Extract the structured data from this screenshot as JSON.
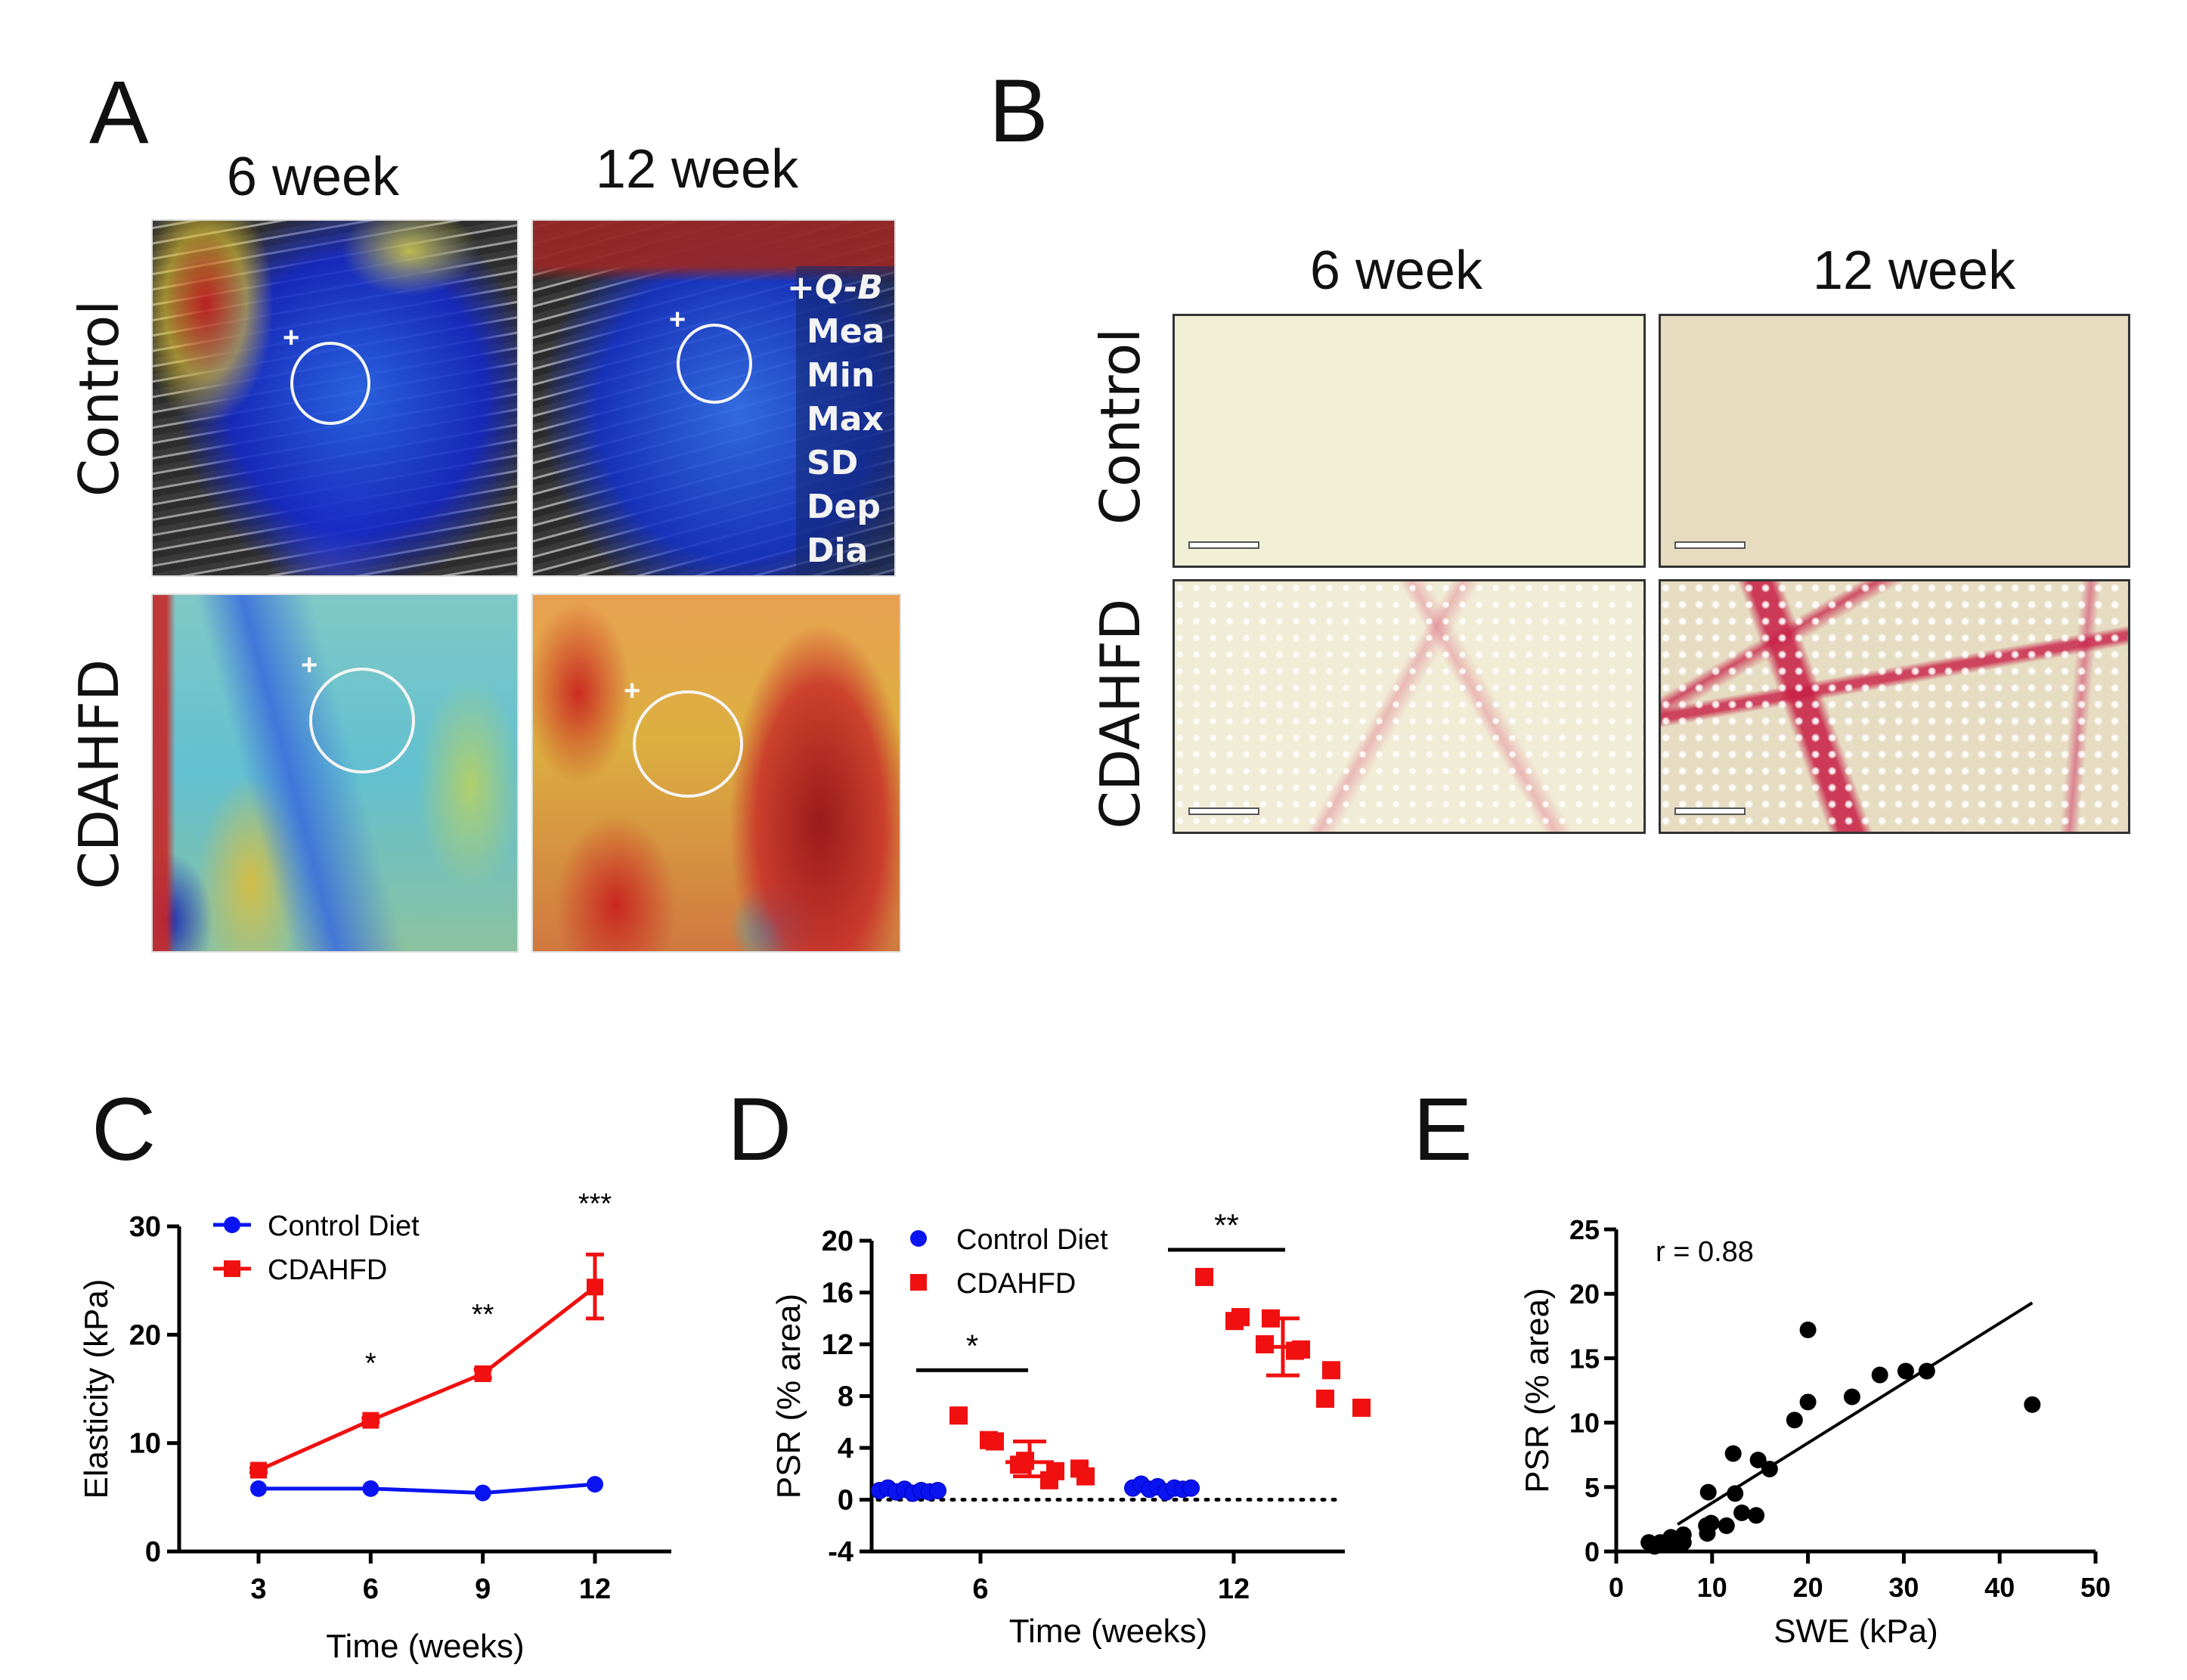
{
  "figure": {
    "panel_labels": {
      "a": "A",
      "b": "B",
      "c": "C",
      "d": "D",
      "e": "E"
    },
    "panel_a": {
      "columns": [
        "6 week",
        "12 week"
      ],
      "rows": [
        "Control",
        "CDAHFD"
      ],
      "qbox_lines": [
        "+Q-B",
        "Mea",
        "Min",
        "Max",
        "SD",
        "Dep",
        "Dia"
      ],
      "images": [
        {
          "row": "Control",
          "col": "6 week",
          "description": "shear-wave elastography map, mostly blue (soft)"
        },
        {
          "row": "Control",
          "col": "12 week",
          "description": "shear-wave elastography map, mostly blue (soft)"
        },
        {
          "row": "CDAHFD",
          "col": "6 week",
          "description": "shear-wave elastography map, cyan/yellow (intermediate)"
        },
        {
          "row": "CDAHFD",
          "col": "12 week",
          "description": "shear-wave elastography map, red/yellow (stiff)"
        }
      ]
    },
    "panel_b": {
      "columns": [
        "6 week",
        "12 week"
      ],
      "rows": [
        "Control",
        "CDAHFD"
      ],
      "images": [
        {
          "row": "Control",
          "col": "6 week",
          "description": "picrosirius red histology, minimal staining"
        },
        {
          "row": "Control",
          "col": "12 week",
          "description": "picrosirius red histology, minimal staining"
        },
        {
          "row": "CDAHFD",
          "col": "6 week",
          "description": "picrosirius red histology, faint fibrous strands, steatosis"
        },
        {
          "row": "CDAHFD",
          "col": "12 week",
          "description": "picrosirius red histology, bridging fibrosis, steatosis"
        }
      ]
    }
  },
  "chart_data": [
    {
      "id": "C",
      "type": "line",
      "title": "",
      "xlabel": "Time (weeks)",
      "ylabel": "Elasticity (kPa)",
      "x": [
        3,
        6,
        9,
        12
      ],
      "xticks": [
        "3",
        "6",
        "9",
        "12"
      ],
      "yticks": [
        "0",
        "10",
        "20",
        "30"
      ],
      "ylim": [
        0,
        30
      ],
      "xlim": [
        1,
        14.5
      ],
      "legend_position": "top-left",
      "series": [
        {
          "name": "Control Diet",
          "color": "#0a14f0",
          "marker": "circle",
          "values": [
            5.8,
            5.8,
            5.4,
            6.2
          ]
        },
        {
          "name": "CDAHFD",
          "color": "#f01010",
          "marker": "square",
          "values": [
            7.5,
            12.1,
            16.4,
            24.4
          ],
          "error_bars": [
            [
              7.3,
              7.7
            ],
            [
              11.9,
              12.3
            ],
            [
              16.0,
              16.8
            ],
            [
              21.5,
              27.4
            ]
          ]
        }
      ],
      "annotations": [
        {
          "x": 6,
          "text": "*"
        },
        {
          "x": 9,
          "text": "**"
        },
        {
          "x": 12,
          "text": "***"
        }
      ]
    },
    {
      "id": "D",
      "type": "scatter",
      "title": "",
      "xlabel": "Time (weeks)",
      "ylabel": "PSR (% area)",
      "categories": [
        "6",
        "12"
      ],
      "yticks": [
        "-4",
        "0",
        "4",
        "8",
        "12",
        "16",
        "20"
      ],
      "ylim": [
        -4,
        20
      ],
      "reference_line": 0,
      "legend_position": "top-left",
      "series": [
        {
          "name": "Control Diet",
          "color": "#0a14f0",
          "marker": "circle",
          "groups": [
            {
              "category": "6",
              "values": [
                0.7,
                0.9,
                0.6,
                0.8,
                0.5,
                0.7,
                0.6,
                0.7
              ]
            },
            {
              "category": "12",
              "values": [
                0.9,
                1.2,
                0.8,
                1.0,
                0.6,
                0.9,
                0.8,
                0.9
              ]
            }
          ]
        },
        {
          "name": "CDAHFD",
          "color": "#f01010",
          "marker": "square",
          "groups": [
            {
              "category": "6",
              "values": [
                6.5,
                4.5,
                4.6,
                3.0,
                2.7,
                2.2,
                1.5,
                1.8,
                2.4
              ],
              "mean": 2.9,
              "error": [
                1.8,
                4.5
              ]
            },
            {
              "category": "12",
              "values": [
                17.2,
                14.1,
                13.8,
                14.0,
                12.0,
                11.6,
                11.5,
                10.0,
                7.8,
                7.1
              ],
              "mean": 11.8,
              "error": [
                9.6,
                14.0
              ]
            }
          ]
        }
      ],
      "annotations": [
        {
          "category": "6",
          "text": "*"
        },
        {
          "category": "12",
          "text": "**"
        }
      ]
    },
    {
      "id": "E",
      "type": "scatter",
      "title": "",
      "xlabel": "SWE (kPa)",
      "ylabel": "PSR (% area)",
      "xticks": [
        "0",
        "10",
        "20",
        "30",
        "40",
        "50"
      ],
      "yticks": [
        "0",
        "5",
        "10",
        "15",
        "20",
        "25"
      ],
      "xlim": [
        0,
        50
      ],
      "ylim": [
        0,
        25
      ],
      "annotation": "r = 0.88",
      "points": [
        [
          3.4,
          0.7
        ],
        [
          4.0,
          0.4
        ],
        [
          4.6,
          0.7
        ],
        [
          5.1,
          0.5
        ],
        [
          5.7,
          1.1
        ],
        [
          6.3,
          0.6
        ],
        [
          7.0,
          1.3
        ],
        [
          7.0,
          0.7
        ],
        [
          9.4,
          2.0
        ],
        [
          9.5,
          1.4
        ],
        [
          9.9,
          2.2
        ],
        [
          9.6,
          4.6
        ],
        [
          11.5,
          2.0
        ],
        [
          12.2,
          7.6
        ],
        [
          12.4,
          4.5
        ],
        [
          13.1,
          3.0
        ],
        [
          14.6,
          2.8
        ],
        [
          14.8,
          7.1
        ],
        [
          16.0,
          6.4
        ],
        [
          18.6,
          10.2
        ],
        [
          20.0,
          11.6
        ],
        [
          20.0,
          17.2
        ],
        [
          24.6,
          12.0
        ],
        [
          27.5,
          13.7
        ],
        [
          30.2,
          14.0
        ],
        [
          32.4,
          14.0
        ],
        [
          43.4,
          11.4
        ]
      ],
      "fit_line": [
        [
          6.4,
          2.1
        ],
        [
          43.4,
          19.3
        ]
      ],
      "color": "#000000"
    }
  ]
}
